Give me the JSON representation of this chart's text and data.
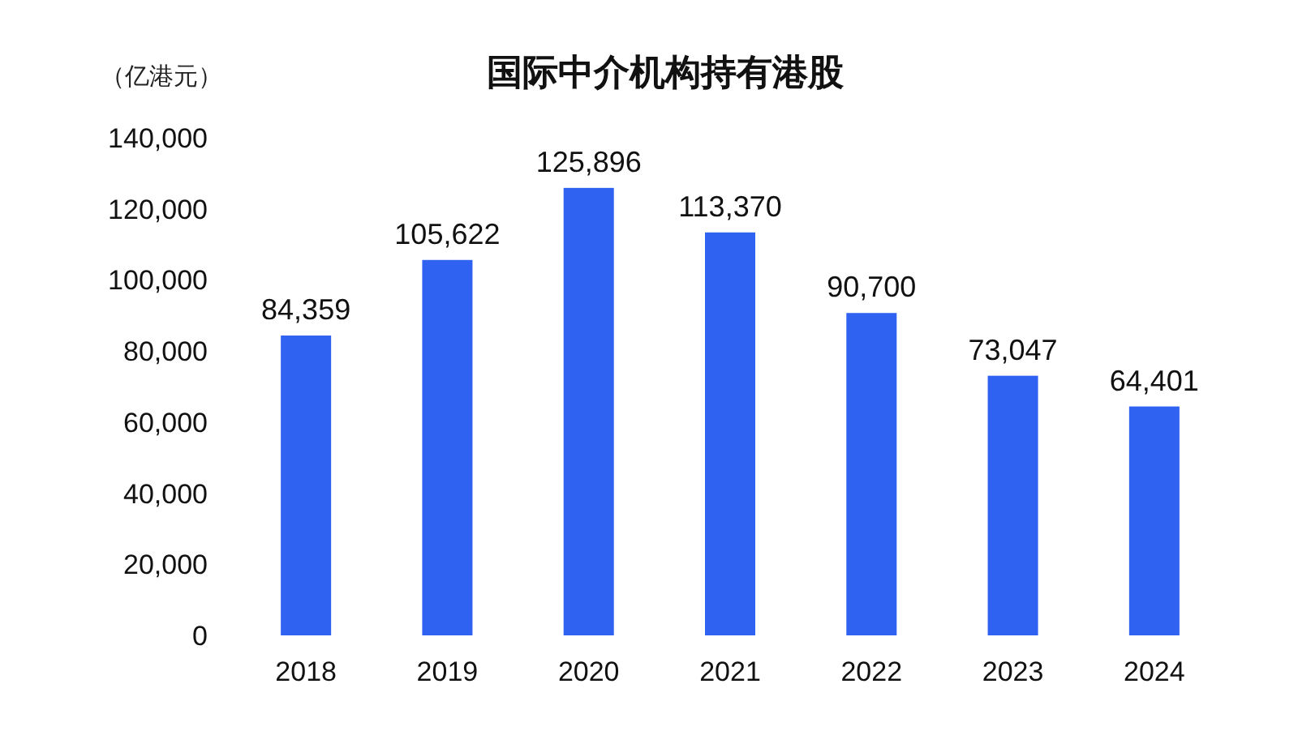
{
  "chart_data": {
    "type": "bar",
    "title": "国际中介机构持有港股",
    "ylabel": "（亿港元）",
    "categories": [
      "2018",
      "2019",
      "2020",
      "2021",
      "2022",
      "2023",
      "2024"
    ],
    "values": [
      84359,
      105622,
      125896,
      113370,
      90700,
      73047,
      64401
    ],
    "value_labels": [
      "84,359",
      "105,622",
      "125,896",
      "113,370",
      "90,700",
      "73,047",
      "64,401"
    ],
    "color": "#2f62f0",
    "ylim": [
      0,
      140000
    ],
    "yticks": [
      {
        "value": 0,
        "label": "0"
      },
      {
        "value": 20000,
        "label": "20,000"
      },
      {
        "value": 40000,
        "label": "40,000"
      },
      {
        "value": 60000,
        "label": "60,000"
      },
      {
        "value": 80000,
        "label": "80,000"
      },
      {
        "value": 100000,
        "label": "100,000"
      },
      {
        "value": 120000,
        "label": "120,000"
      },
      {
        "value": 140000,
        "label": "140,000"
      }
    ],
    "grid": false
  }
}
